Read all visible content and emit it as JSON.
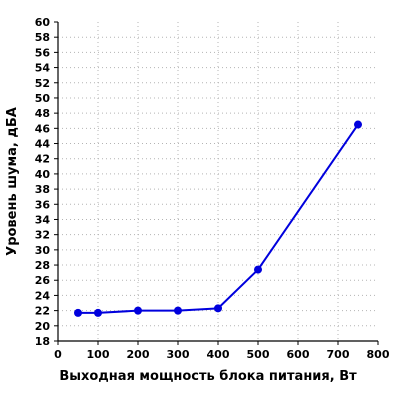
{
  "chart_data": {
    "type": "line",
    "xlabel": "Выходная мощность блока питания, Вт",
    "ylabel": "Уровень шума, дБА",
    "xlim": [
      0,
      800
    ],
    "ylim": [
      18,
      60
    ],
    "x_ticks": [
      0,
      100,
      200,
      300,
      400,
      500,
      600,
      700,
      800
    ],
    "y_ticks": [
      18,
      20,
      22,
      24,
      26,
      28,
      30,
      32,
      34,
      36,
      38,
      40,
      42,
      44,
      46,
      48,
      50,
      52,
      54,
      56,
      58,
      60
    ],
    "grid": true,
    "series": [
      {
        "x": [
          50,
          100,
          200,
          300,
          400,
          500,
          750
        ],
        "y": [
          21.7,
          21.7,
          22.0,
          22.0,
          22.3,
          27.4,
          46.5
        ],
        "color": "#0000dd"
      }
    ]
  }
}
